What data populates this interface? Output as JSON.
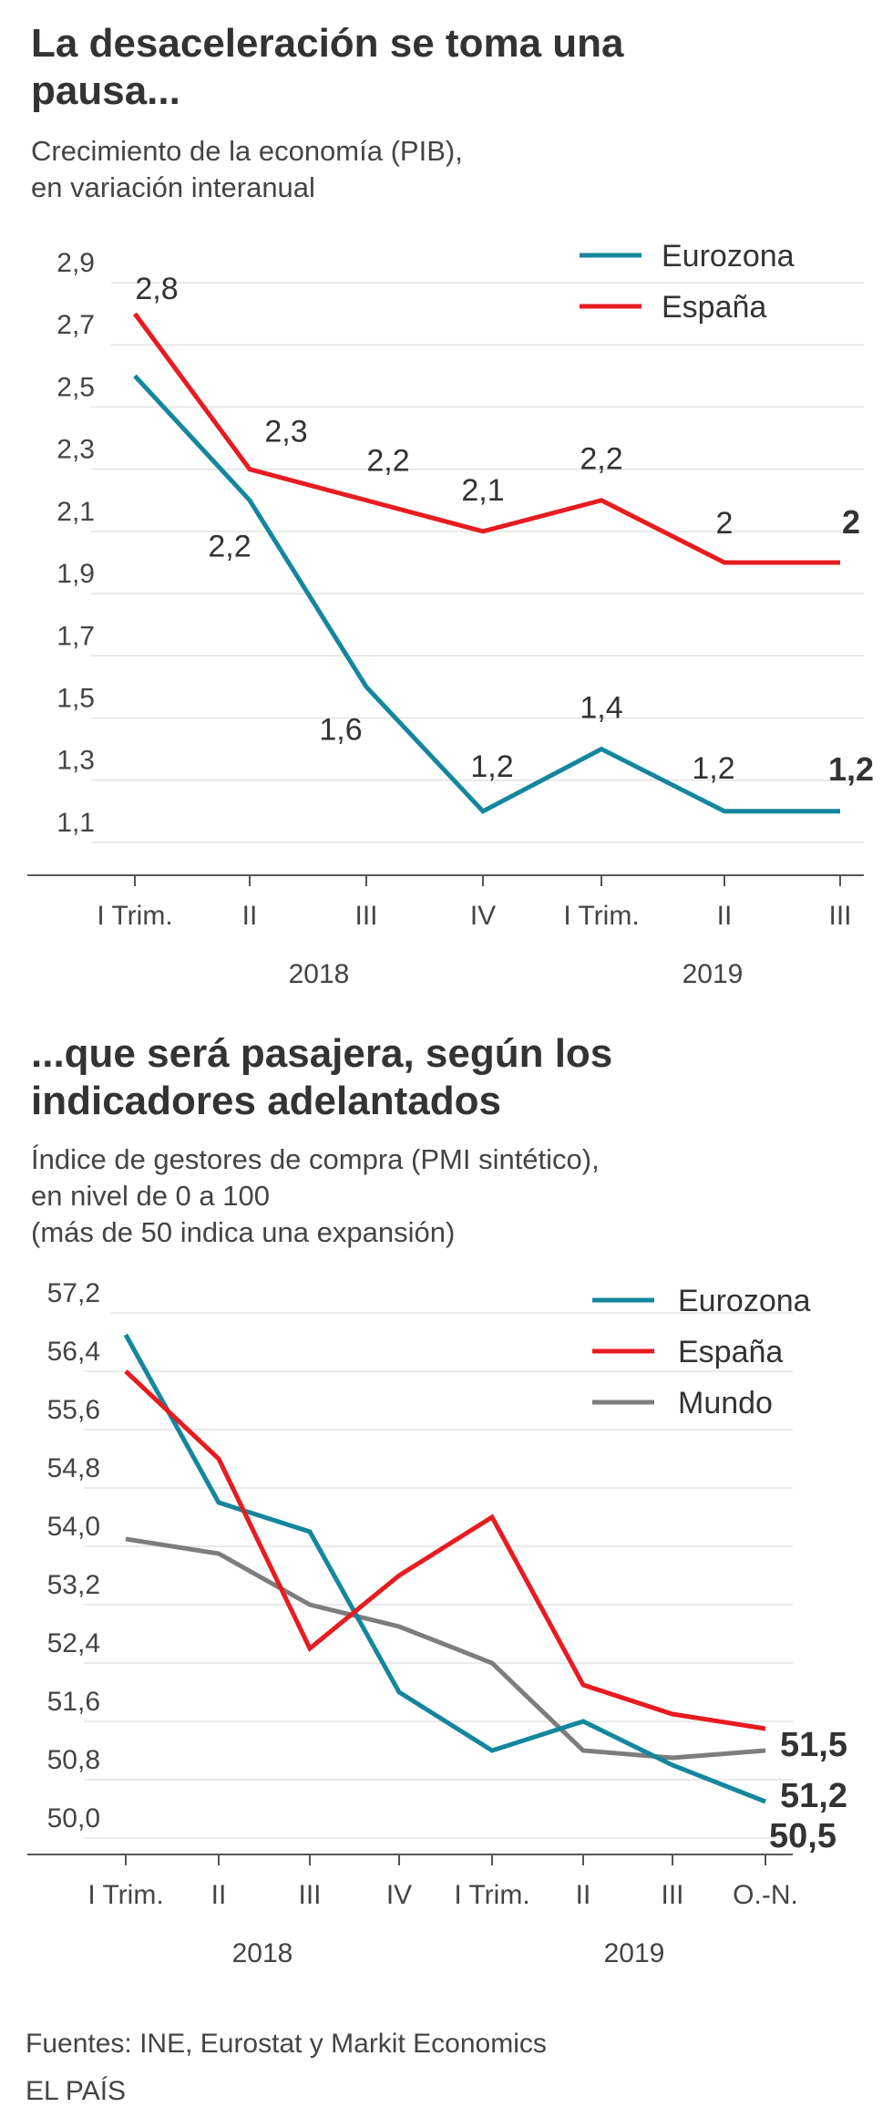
{
  "chart_data": [
    {
      "type": "line",
      "title": "La desaceleración se toma una pausa...",
      "subtitle": [
        "Crecimiento de la economía (PIB),",
        "en variación interanual"
      ],
      "categories": [
        "I Trim.",
        "II",
        "III",
        "IV",
        "I Trim.",
        "II",
        "III"
      ],
      "years": [
        {
          "label": "2018"
        },
        {
          "label": "2019"
        }
      ],
      "ylim": [
        1.0,
        2.9
      ],
      "ytick_labels": [
        "2,9",
        "2,7",
        "2,5",
        "2,3",
        "2,1",
        "1,9",
        "1,7",
        "1,5",
        "1,3",
        "1,1"
      ],
      "yticks": [
        2.9,
        2.7,
        2.5,
        2.3,
        2.1,
        1.9,
        1.7,
        1.5,
        1.3,
        1.1
      ],
      "grid": true,
      "legend": "top-right",
      "series": [
        {
          "name": "Eurozona",
          "color": "#14869e",
          "values": [
            2.6,
            2.2,
            1.6,
            1.2,
            1.4,
            1.2,
            1.2
          ],
          "labels": [
            "",
            "2,2",
            "1,6",
            "1,2",
            "1,4",
            "1,2",
            "1,2"
          ]
        },
        {
          "name": "España",
          "color": "#e81b20",
          "values": [
            2.8,
            2.3,
            2.2,
            2.1,
            2.2,
            2.0,
            2.0
          ],
          "labels": [
            "2,8",
            "2,3",
            "2,2",
            "2,1",
            "2,2",
            "2",
            "2"
          ]
        }
      ]
    },
    {
      "type": "line",
      "title": "...que será pasajera, según los indicadores adelantados",
      "subtitle": [
        "Índice de gestores de compra (PMI sintético),",
        "en nivel de 0 a 100",
        "(más de 50 indica una expansión)"
      ],
      "categories": [
        "I Trim.",
        "II",
        "III",
        "IV",
        "I Trim.",
        "II",
        "III",
        "O.-N."
      ],
      "years": [
        {
          "label": "2018"
        },
        {
          "label": "2019"
        }
      ],
      "ylim": [
        49.8,
        57.2
      ],
      "ytick_labels": [
        "57,2",
        "56,4",
        "55,6",
        "54,8",
        "54,0",
        "53,2",
        "52,4",
        "51,6",
        "50,8",
        "50,0"
      ],
      "yticks": [
        57.2,
        56.4,
        55.6,
        54.8,
        54.0,
        53.2,
        52.4,
        51.6,
        50.8,
        50.0
      ],
      "grid": true,
      "legend": "top-right",
      "series": [
        {
          "name": "Eurozona",
          "color": "#14869e",
          "values": [
            56.9,
            54.6,
            54.2,
            52.0,
            51.2,
            51.6,
            51.0,
            50.5
          ],
          "end_label": "50,5"
        },
        {
          "name": "España",
          "color": "#e81b20",
          "values": [
            56.4,
            55.2,
            52.6,
            53.6,
            54.4,
            52.1,
            51.7,
            51.5
          ],
          "end_label": "51,5"
        },
        {
          "name": "Mundo",
          "color": "#7d7d7d",
          "values": [
            54.1,
            53.9,
            53.2,
            52.9,
            52.4,
            51.2,
            51.1,
            51.2
          ],
          "end_label": "51,2"
        }
      ]
    }
  ],
  "footer": {
    "sources": "Fuentes: INE, Eurostat y Markit Economics",
    "brand": "EL PAÍS"
  }
}
